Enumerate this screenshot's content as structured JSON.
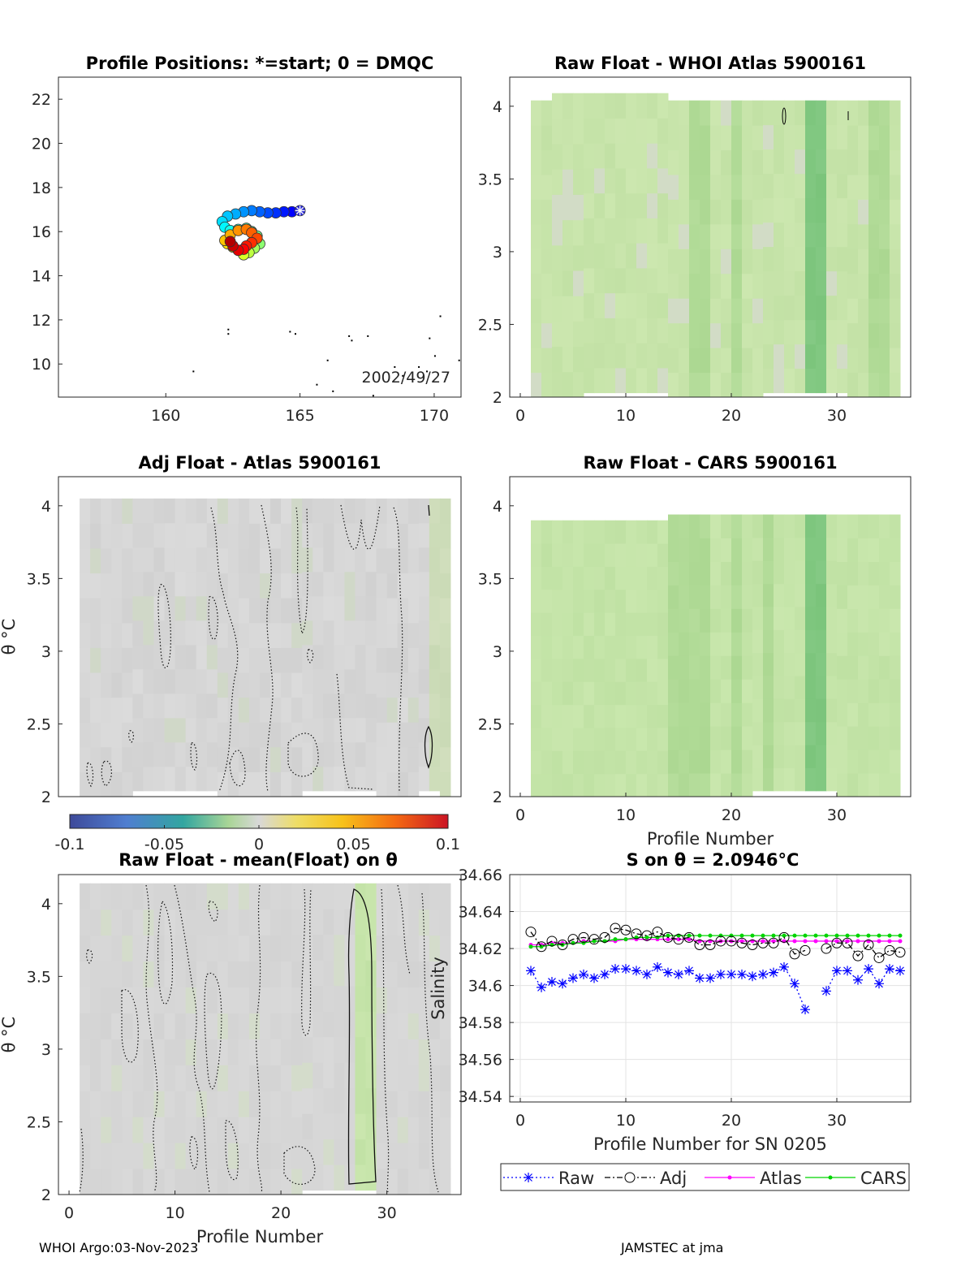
{
  "footer": {
    "left": "WHOI Argo:03-Nov-2023",
    "right": "JAMSTEC at jma"
  },
  "chart_data": [
    {
      "type": "scatter",
      "id": "positions",
      "title": "Profile Positions: *=start; 0 = DMQC",
      "annotation": "2002/49/27",
      "xlim": [
        156,
        171
      ],
      "ylim": [
        8.5,
        23
      ],
      "xticks": [
        160,
        165,
        170
      ],
      "yticks": [
        10,
        12,
        14,
        16,
        18,
        20,
        22
      ],
      "x": [
        165.0,
        164.7,
        164.4,
        164.1,
        163.8,
        163.5,
        163.2,
        162.9,
        162.6,
        162.3,
        162.1,
        162.2,
        162.4,
        162.7,
        163.0,
        163.2,
        163.4,
        163.5,
        163.3,
        163.1,
        162.9,
        162.7,
        162.5,
        162.3,
        162.2,
        162.4,
        162.7,
        163.0,
        163.2,
        163.4,
        163.2,
        163.0,
        162.9,
        162.7,
        162.5,
        162.4
      ],
      "y": [
        16.95,
        16.9,
        16.9,
        16.85,
        16.85,
        16.9,
        16.95,
        16.9,
        16.8,
        16.7,
        16.45,
        16.2,
        16.05,
        16.1,
        16.15,
        16.0,
        15.8,
        15.45,
        15.25,
        15.05,
        14.95,
        15.15,
        15.3,
        15.45,
        15.6,
        15.85,
        16.05,
        16.1,
        15.95,
        15.7,
        15.5,
        15.35,
        15.2,
        15.15,
        15.35,
        15.55
      ],
      "coast_points": [
        [
          161,
          9.7
        ],
        [
          162.3,
          11.6
        ],
        [
          162.3,
          11.4
        ],
        [
          164.6,
          11.5
        ],
        [
          164.8,
          11.4
        ],
        [
          165.6,
          9.1
        ],
        [
          166.0,
          10.2
        ],
        [
          166.2,
          8.8
        ],
        [
          166.8,
          11.3
        ],
        [
          166.9,
          11.1
        ],
        [
          167.5,
          11.3
        ],
        [
          167.7,
          8.6
        ],
        [
          168.5,
          9.9
        ],
        [
          168.8,
          9.5
        ],
        [
          169.4,
          9.9
        ],
        [
          169.7,
          9.7
        ],
        [
          169.8,
          11.2
        ],
        [
          170.0,
          10.4
        ],
        [
          170.2,
          12.2
        ],
        [
          170.9,
          10.2
        ]
      ]
    },
    {
      "type": "heatmap",
      "id": "raw-whoi",
      "title": "Raw Float - WHOI Atlas  5900161",
      "xlim": [
        -1,
        37
      ],
      "ylim": [
        2,
        4.2
      ],
      "xticks": [
        0,
        10,
        20,
        30
      ],
      "yticks": [
        2,
        2.5,
        3,
        3.5,
        4
      ],
      "ytick_labels": [
        "2",
        "2.5",
        "3",
        "3.5",
        "4"
      ],
      "xlabel": "",
      "ylabel": "",
      "darker_profiles": [
        27,
        28
      ],
      "moderate_profiles": [
        16,
        17,
        20,
        33,
        34
      ],
      "top_bounds": [
        4.04,
        4.04,
        4.09,
        4.09,
        4.09,
        4.09,
        4.09,
        4.09,
        4.09,
        4.09,
        4.09,
        4.09,
        4.09,
        4.04,
        4.04,
        4.04,
        4.04,
        4.04,
        4.04,
        4.04,
        4.04,
        4.04,
        4.04,
        4.04,
        4.04,
        4.04,
        4.04,
        4.04,
        4.04,
        4.04,
        4.04,
        4.04,
        4.04,
        4.04,
        4.04
      ]
    },
    {
      "type": "heatmap",
      "id": "adj-atlas",
      "title": "Adj Float - Atlas  5900161",
      "xlim": [
        -1,
        37
      ],
      "ylim": [
        2,
        4.2
      ],
      "yticks": [
        2,
        2.5,
        3,
        3.5,
        4
      ],
      "ytick_labels": [
        "2",
        "2.5",
        "3",
        "3.5",
        "4"
      ],
      "ylabel": "θ °C",
      "colorbar": {
        "min": -0.1,
        "max": 0.1,
        "ticks": [
          "-0.1",
          "-0.05",
          "0",
          "0.05",
          "0.1"
        ]
      }
    },
    {
      "type": "heatmap",
      "id": "raw-cars",
      "title": "Raw Float - CARS  5900161",
      "xlim": [
        -1,
        37
      ],
      "ylim": [
        2,
        4.2
      ],
      "xticks": [
        0,
        10,
        20,
        30
      ],
      "yticks": [
        2,
        2.5,
        3,
        3.5,
        4
      ],
      "ytick_labels": [
        "2",
        "2.5",
        "3",
        "3.5",
        "4"
      ],
      "xlabel": "Profile Number",
      "darker_profiles": [
        27,
        28
      ],
      "moderate_profiles": [
        14,
        15,
        16,
        17,
        20,
        23
      ]
    },
    {
      "type": "heatmap",
      "id": "raw-mean",
      "title": "Raw Float - mean(Float) on θ",
      "xlim": [
        -1,
        37
      ],
      "ylim": [
        2,
        4.2
      ],
      "xticks": [
        0,
        10,
        20,
        30
      ],
      "yticks": [
        2,
        2.5,
        3,
        3.5,
        4
      ],
      "ytick_labels": [
        "2",
        "2.5",
        "3",
        "3.5",
        "4"
      ],
      "xlabel": "Profile Number",
      "ylabel": "θ °C",
      "highlight_profiles": [
        27,
        28
      ]
    },
    {
      "type": "line",
      "id": "salinity",
      "title": "S on θ = 2.0946°C",
      "xlabel": "Profile Number for SN 0205",
      "ylabel": "Salinity",
      "xlim": [
        -1,
        37
      ],
      "ylim": [
        34.537,
        34.66
      ],
      "xticks": [
        0,
        10,
        20,
        30
      ],
      "yticks": [
        34.54,
        34.56,
        34.58,
        34.6,
        34.62,
        34.64,
        34.66
      ],
      "ytick_labels": [
        "34.54",
        "34.56",
        "34.58",
        "34.6",
        "34.62",
        "34.64",
        "34.66"
      ],
      "x": [
        1,
        2,
        3,
        4,
        5,
        6,
        7,
        8,
        9,
        10,
        11,
        12,
        13,
        14,
        15,
        16,
        17,
        18,
        19,
        20,
        21,
        22,
        23,
        24,
        25,
        26,
        27,
        28,
        29,
        30,
        31,
        32,
        33,
        34,
        35,
        36
      ],
      "series": [
        {
          "name": "Raw",
          "color": "#0000ff",
          "marker": "asterisk",
          "style": "dotted",
          "values": [
            34.608,
            34.599,
            34.602,
            34.601,
            34.604,
            34.606,
            34.604,
            34.606,
            34.609,
            34.609,
            34.608,
            34.606,
            34.61,
            34.607,
            34.606,
            34.608,
            34.604,
            34.604,
            34.606,
            34.606,
            34.606,
            34.605,
            34.606,
            34.607,
            34.61,
            34.601,
            34.587,
            null,
            34.597,
            34.608,
            34.608,
            34.603,
            34.609,
            34.601,
            34.609,
            34.608
          ]
        },
        {
          "name": "Adj",
          "color": "#000000",
          "marker": "circle",
          "style": "dashdot",
          "values": [
            34.629,
            34.621,
            34.624,
            34.622,
            34.625,
            34.626,
            34.625,
            34.626,
            34.631,
            34.63,
            34.628,
            34.627,
            34.629,
            34.626,
            34.625,
            34.626,
            34.622,
            34.622,
            34.624,
            34.624,
            34.623,
            34.622,
            34.623,
            34.623,
            34.626,
            34.617,
            34.619,
            null,
            34.62,
            34.623,
            34.623,
            34.616,
            34.622,
            34.615,
            34.619,
            34.618
          ]
        },
        {
          "name": "Atlas",
          "color": "#ff00ff",
          "marker": "dot",
          "style": "solid",
          "values": [
            34.622,
            34.622,
            34.623,
            34.623,
            34.623,
            34.624,
            34.624,
            34.624,
            34.624,
            34.625,
            34.625,
            34.625,
            34.625,
            34.625,
            34.625,
            34.625,
            34.624,
            34.624,
            34.624,
            34.624,
            34.624,
            34.624,
            34.624,
            34.624,
            34.624,
            34.624,
            34.624,
            34.624,
            34.624,
            34.624,
            34.624,
            34.624,
            34.624,
            34.624,
            34.624,
            34.624
          ]
        },
        {
          "name": "CARS",
          "color": "#00d400",
          "marker": "dot",
          "style": "solid",
          "values": [
            34.621,
            34.621,
            34.622,
            34.622,
            34.623,
            34.623,
            34.624,
            34.624,
            34.625,
            34.625,
            34.626,
            34.626,
            34.626,
            34.627,
            34.627,
            34.627,
            34.627,
            34.627,
            34.627,
            34.627,
            34.627,
            34.627,
            34.627,
            34.627,
            34.627,
            34.627,
            34.627,
            34.627,
            34.627,
            34.627,
            34.627,
            34.627,
            34.627,
            34.627,
            34.627,
            34.627
          ]
        }
      ],
      "legend": [
        "Raw",
        "Adj",
        "Atlas",
        "CARS"
      ]
    }
  ]
}
